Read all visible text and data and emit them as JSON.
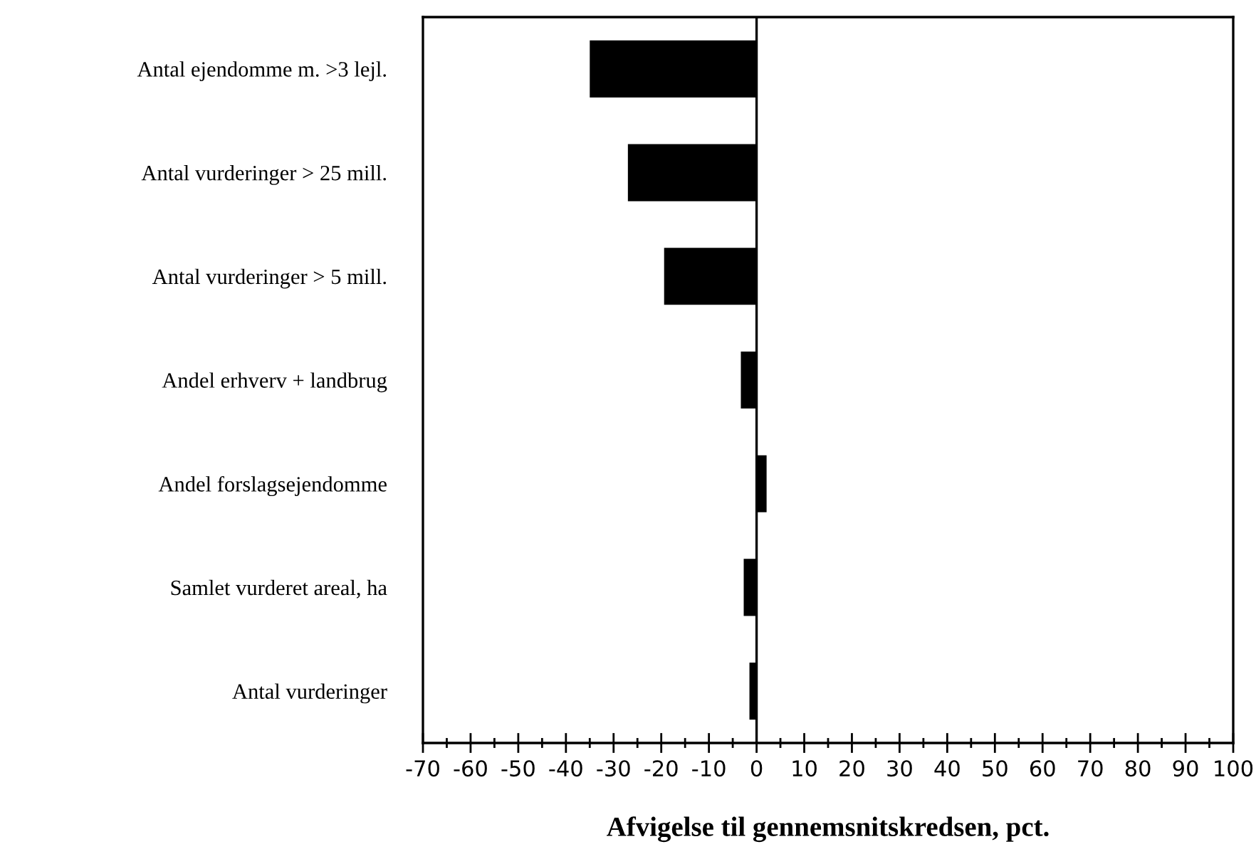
{
  "chart_data": {
    "type": "bar",
    "orientation": "horizontal",
    "xlabel": "Afvigelse til gennemsnitskredsen, pct.",
    "categories": [
      "Antal ejendomme m. >3 lejl.",
      "Antal vurderinger > 25 mill.",
      "Antal vurderinger > 5 mill.",
      "Andel erhverv + landbrug",
      "Andel forslagsejendomme",
      "Samlet vurderet areal, ha",
      "Antal vurderinger"
    ],
    "values": [
      -35,
      -27,
      -19.4,
      -3.3,
      2.1,
      -2.7,
      -1.5
    ],
    "color": "#000000",
    "xlim": [
      -70,
      100
    ],
    "xticks": [
      -70,
      -60,
      -50,
      -40,
      -30,
      -20,
      -10,
      0,
      10,
      20,
      30,
      40,
      50,
      60,
      70,
      80,
      90,
      100
    ],
    "ref_lines": [
      {
        "axis": "x",
        "value": 0,
        "color": "#000000"
      }
    ],
    "grid": false,
    "legend": false
  }
}
